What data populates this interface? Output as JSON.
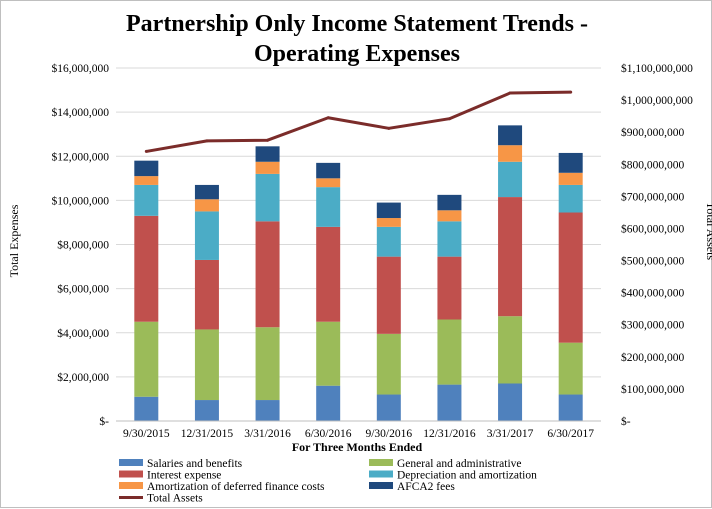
{
  "chart_data": {
    "type": "bar",
    "stacked": true,
    "title_lines": [
      "Partnership Only Income Statement Trends -",
      "Operating Expenses"
    ],
    "xlabel": "For Three Months  Ended",
    "ylabel": "Total Expenses",
    "y2label": "Total Assets",
    "categories": [
      "9/30/2015",
      "12/31/2015",
      "3/31/2016",
      "6/30/2016",
      "9/30/2016",
      "12/31/2016",
      "3/31/2017",
      "6/30/2017"
    ],
    "ylim": [
      0,
      16000000
    ],
    "y_ticks": [
      0,
      2000000,
      4000000,
      6000000,
      8000000,
      10000000,
      12000000,
      14000000,
      16000000
    ],
    "y_tick_labels": [
      "$-",
      "$2,000,000",
      "$4,000,000",
      "$6,000,000",
      "$8,000,000",
      "$10,000,000",
      "$12,000,000",
      "$14,000,000",
      "$16,000,000"
    ],
    "y2lim": [
      0,
      1100000000
    ],
    "y2_ticks": [
      0,
      100000000,
      200000000,
      300000000,
      400000000,
      500000000,
      600000000,
      700000000,
      800000000,
      900000000,
      1000000000,
      1100000000
    ],
    "y2_tick_labels": [
      "$-",
      "$100,000,000",
      "$200,000,000",
      "$300,000,000",
      "$400,000,000",
      "$500,000,000",
      "$600,000,000",
      "$700,000,000",
      "$800,000,000",
      "$900,000,000",
      "$1,000,000,000",
      "$1,100,000,000"
    ],
    "grid": true,
    "legend_position": "bottom",
    "series": [
      {
        "name": "Salaries and benefits",
        "color": "#4f81bd",
        "values": [
          1100000,
          950000,
          950000,
          1600000,
          1200000,
          1650000,
          1700000,
          1200000
        ]
      },
      {
        "name": "General and administrative",
        "color": "#9bbb59",
        "values": [
          3400000,
          3200000,
          3300000,
          2900000,
          2750000,
          2950000,
          3050000,
          2350000
        ]
      },
      {
        "name": "Interest expense",
        "color": "#c0504d",
        "values": [
          4800000,
          3150000,
          4800000,
          4300000,
          3500000,
          2850000,
          5400000,
          5900000
        ]
      },
      {
        "name": "Depreciation and amortization",
        "color": "#4bacc6",
        "values": [
          1400000,
          2200000,
          2150000,
          1800000,
          1350000,
          1600000,
          1600000,
          1250000
        ]
      },
      {
        "name": "Amortization of deferred finance costs",
        "color": "#f79646",
        "values": [
          400000,
          550000,
          550000,
          400000,
          400000,
          500000,
          750000,
          550000
        ]
      },
      {
        "name": "AFCA2 fees",
        "color": "#1f497d",
        "values": [
          700000,
          650000,
          700000,
          700000,
          700000,
          700000,
          900000,
          900000
        ]
      }
    ],
    "line_series": {
      "name": "Total Assets",
      "color": "#7b2c2a",
      "axis": "right",
      "values": [
        840000000,
        873000000,
        875000000,
        945000000,
        912000000,
        942000000,
        1022000000,
        1025000000
      ]
    }
  }
}
